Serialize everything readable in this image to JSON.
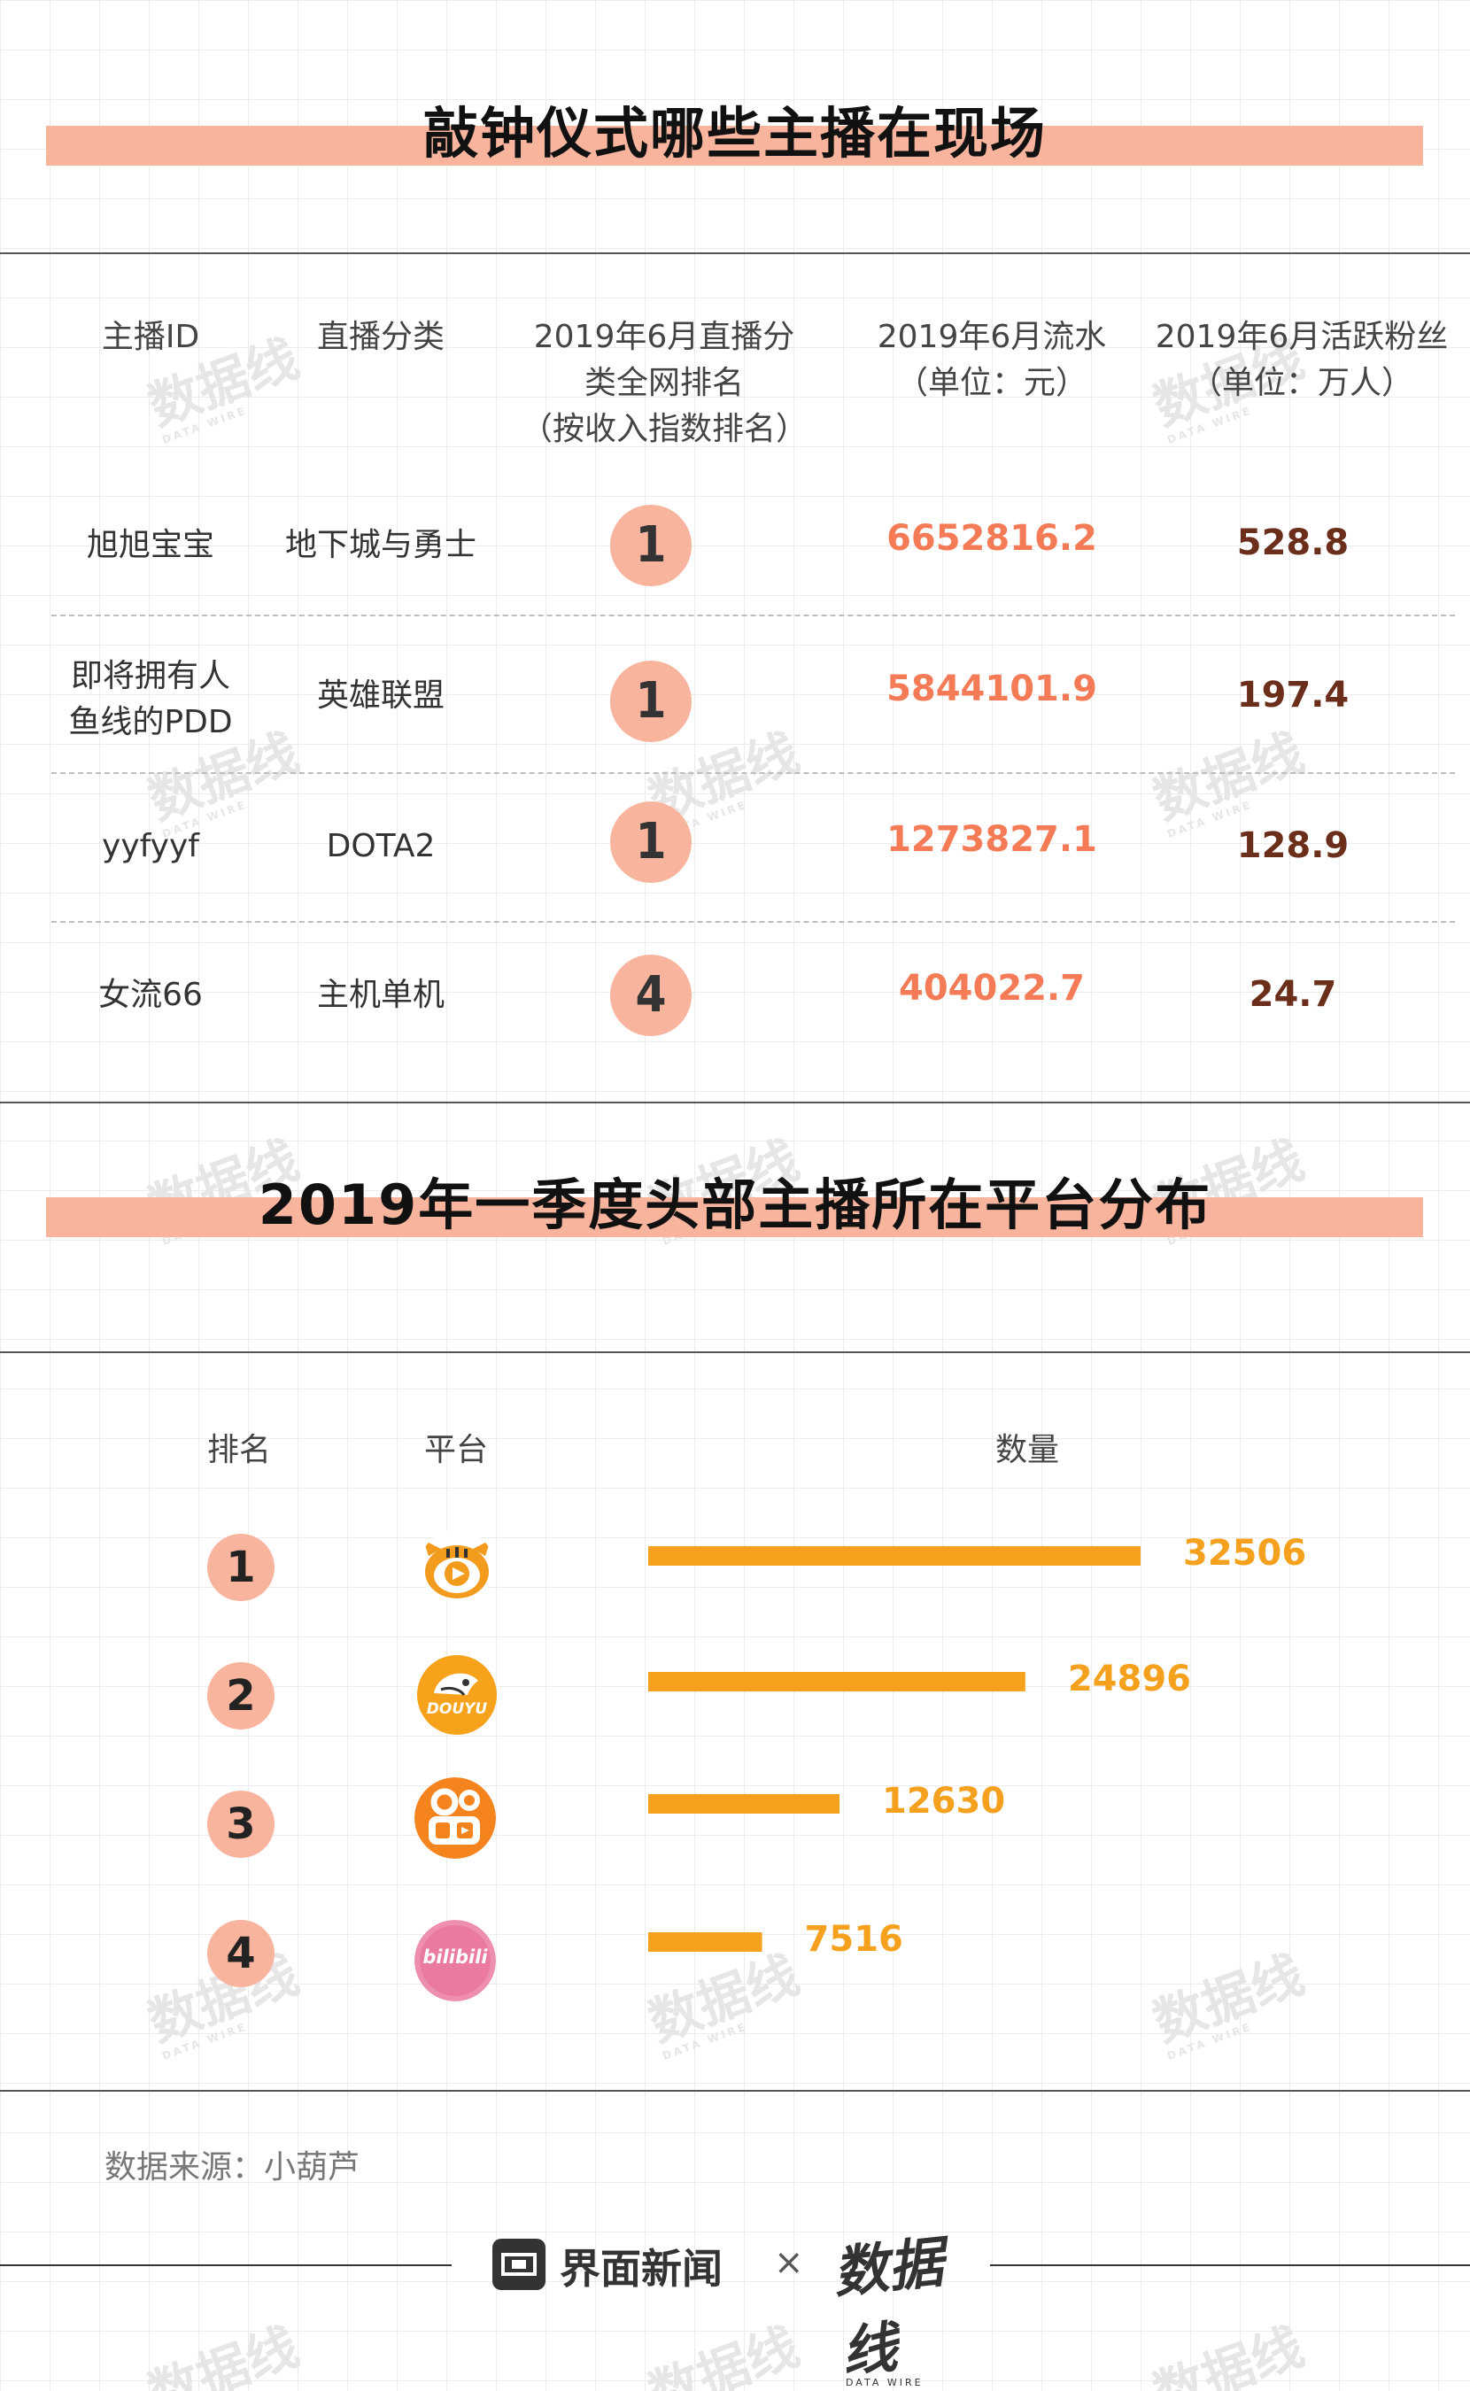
{
  "section1": {
    "title": "敲钟仪式哪些主播在现场",
    "headers": {
      "anchor_id": "主播ID",
      "category": "直播分类",
      "rank_l1": "2019年6月直播分",
      "rank_l2": "类全网排名",
      "rank_l3": "（按收入指数排名）",
      "flow_l1": "2019年6月流水",
      "flow_l2": "（单位：元）",
      "fans_l1": "2019年6月活跃粉丝",
      "fans_l2": "（单位：万人）"
    },
    "rows": [
      {
        "name_l1": "旭旭宝宝",
        "name_l2": "",
        "category": "地下城与勇士",
        "rank": "1",
        "flow": "6652816.2",
        "fans": "528.8"
      },
      {
        "name_l1": "即将拥有人",
        "name_l2": "鱼线的PDD",
        "category": "英雄联盟",
        "rank": "1",
        "flow": "5844101.9",
        "fans": "197.4"
      },
      {
        "name_l1": "yyfyyf",
        "name_l2": "",
        "category": "DOTA2",
        "rank": "1",
        "flow": "1273827.1",
        "fans": "128.9"
      },
      {
        "name_l1": "女流66",
        "name_l2": "",
        "category": "主机单机",
        "rank": "4",
        "flow": "404022.7",
        "fans": "24.7"
      }
    ]
  },
  "section2": {
    "title": "2019年一季度头部主播所在平台分布",
    "headers": {
      "rank": "排名",
      "platform": "平台",
      "count": "数量"
    },
    "logos": [
      "huya-logo",
      "douyu-logo",
      "kuaishou-logo",
      "bilibili-logo"
    ],
    "douyu_text": "DOUYU",
    "bili_text": "bilibili"
  },
  "chart_data": {
    "type": "bar",
    "categories": [
      "1",
      "2",
      "3",
      "4"
    ],
    "values": [
      32506,
      24896,
      12630,
      7516
    ],
    "value_labels": [
      "32506",
      "24896",
      "12630",
      "7516"
    ],
    "title": "2019年一季度头部主播所在平台分布",
    "xlabel": "数量",
    "ylabel": "排名",
    "bar_color": "#f5a11e"
  },
  "footer": {
    "source": "数据来源：小葫芦",
    "brand": "界面新闻",
    "times": "×",
    "partner": "数据线",
    "partner_sub": "DATA WIRE"
  },
  "watermark": {
    "text": "数据线",
    "sub": "DATA WIRE"
  },
  "colors": {
    "accent": "#f8b49d",
    "flow": "#f47b55",
    "fans": "#6b2e1a",
    "bar": "#f5a11e"
  }
}
